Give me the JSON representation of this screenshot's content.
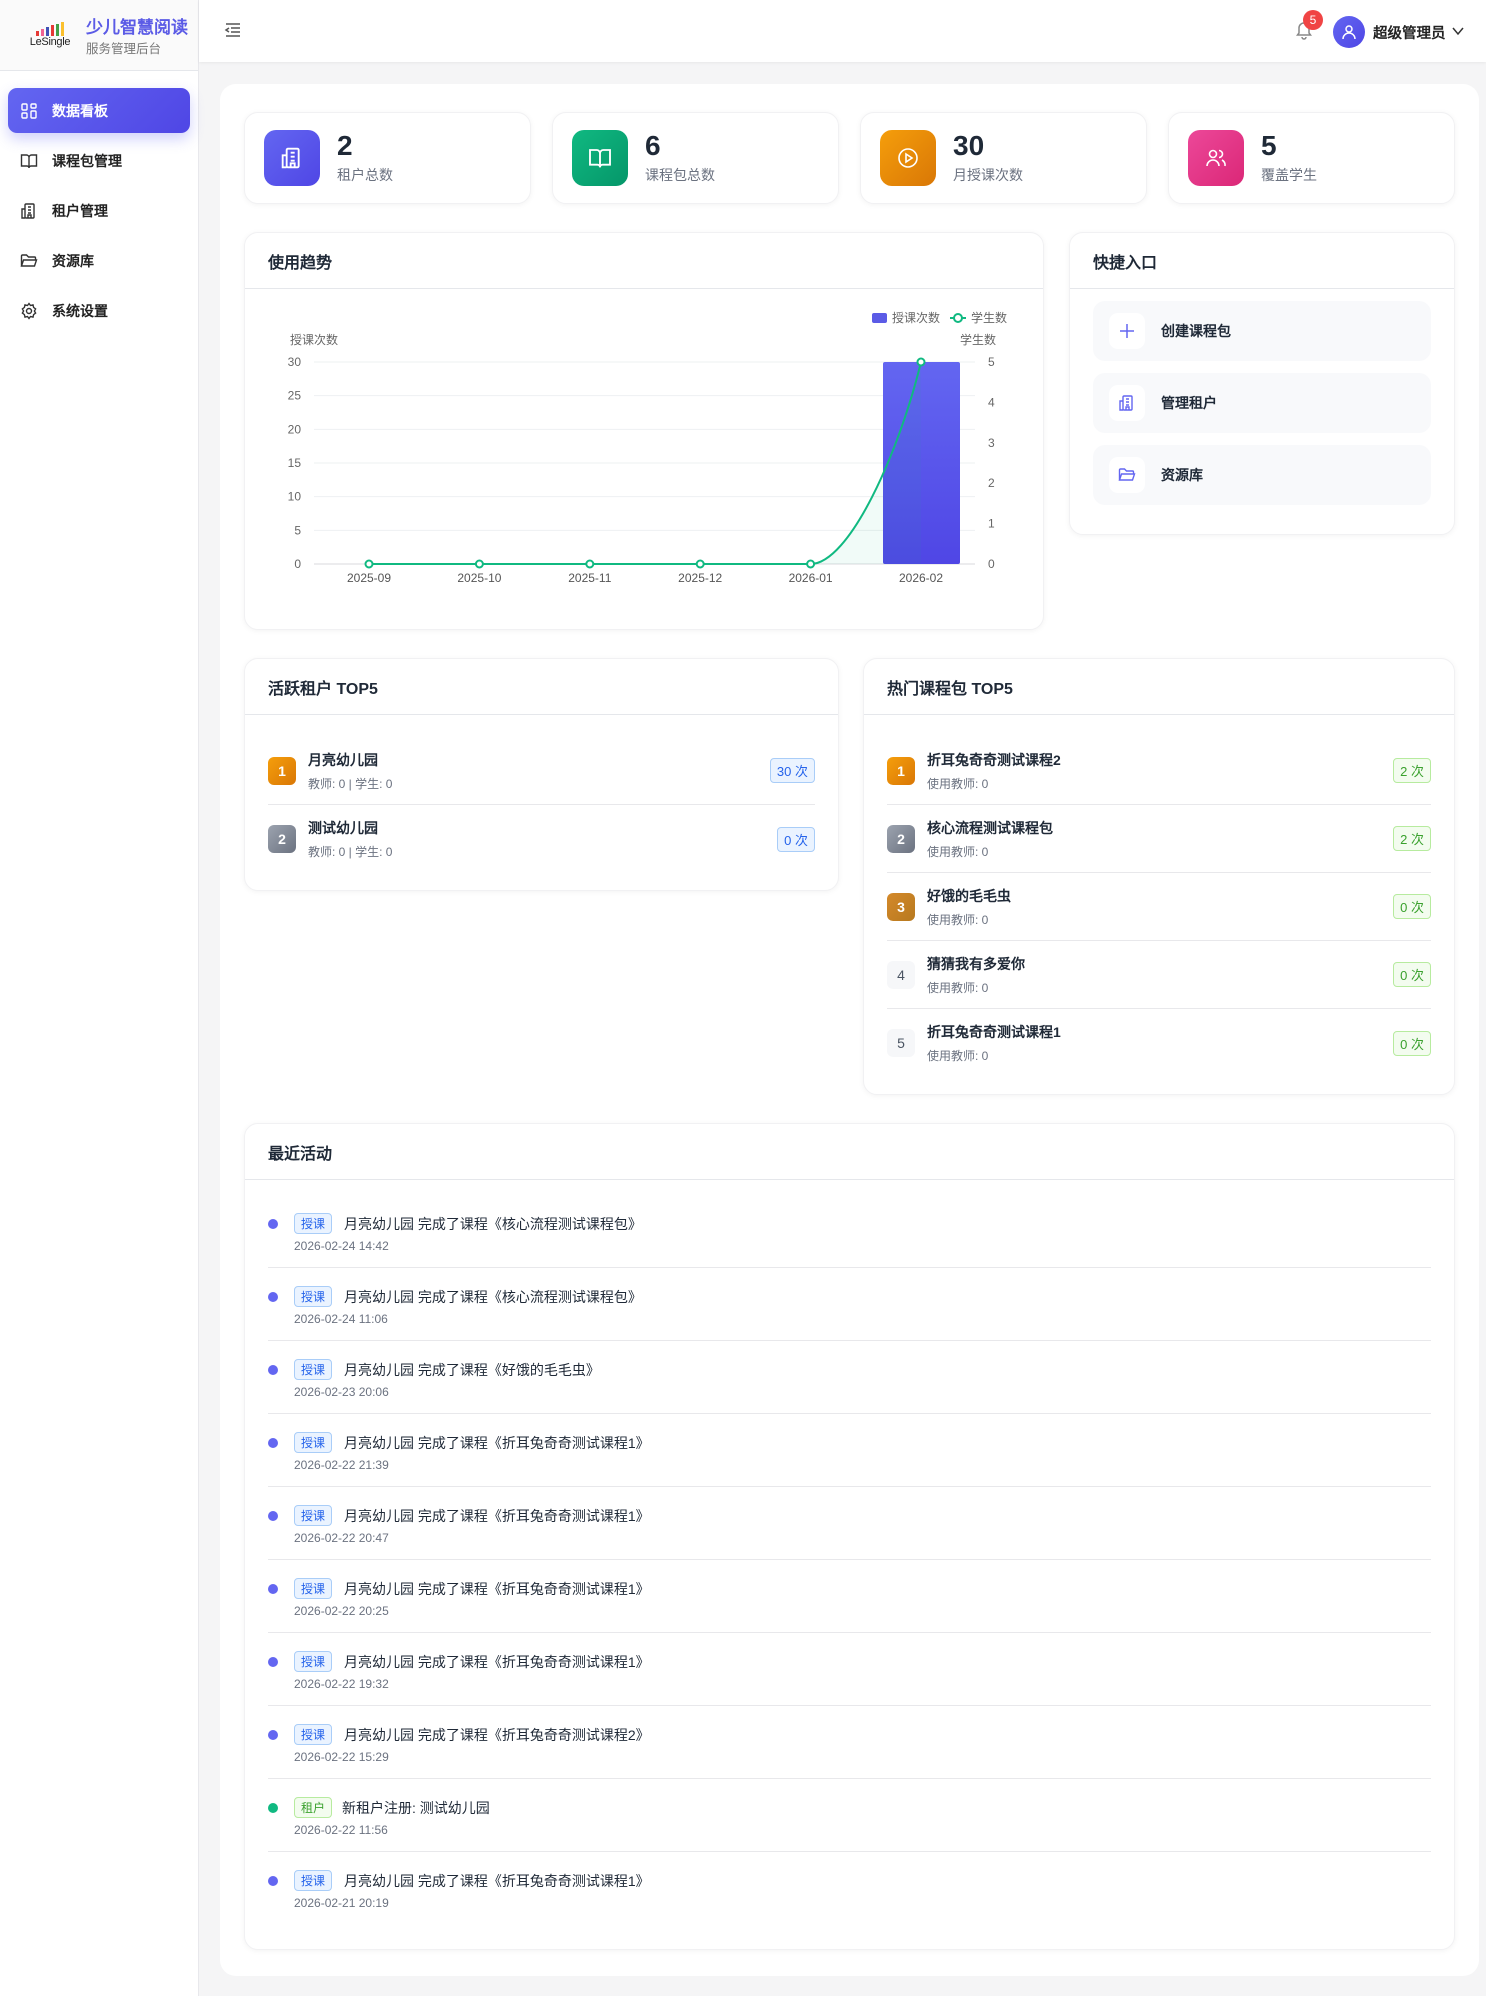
{
  "brand": {
    "logo_word": "LeSingle",
    "title": "少儿智慧阅读",
    "subtitle": "服务管理后台",
    "accent": "#6366f1"
  },
  "sidebar": {
    "items": [
      {
        "label": "数据看板",
        "icon": "dashboard-grid-icon",
        "active": true
      },
      {
        "label": "课程包管理",
        "icon": "book-icon"
      },
      {
        "label": "租户管理",
        "icon": "building-icon"
      },
      {
        "label": "资源库",
        "icon": "folder-icon"
      },
      {
        "label": "系统设置",
        "icon": "gear-icon"
      }
    ]
  },
  "header": {
    "notification_count": "5",
    "user_name": "超级管理员"
  },
  "stats": [
    {
      "value": "2",
      "label": "租户总数",
      "icon": "building-icon",
      "color": "#5b5be6"
    },
    {
      "value": "6",
      "label": "课程包总数",
      "icon": "book-icon",
      "color": "#10b981"
    },
    {
      "value": "30",
      "label": "月授课次数",
      "icon": "play-circle-icon",
      "color": "#f59e0b"
    },
    {
      "value": "5",
      "label": "覆盖学生",
      "icon": "users-icon",
      "color": "#ec4899"
    }
  ],
  "trend": {
    "title": "使用趋势"
  },
  "chart_data": {
    "type": "bar",
    "categories": [
      "2025-09",
      "2025-10",
      "2025-11",
      "2025-12",
      "2026-01",
      "2026-02"
    ],
    "series": [
      {
        "name": "授课次数",
        "type": "bar",
        "axis": "left",
        "values": [
          0,
          0,
          0,
          0,
          0,
          30
        ],
        "color": "#5b5be6"
      },
      {
        "name": "学生数",
        "type": "line",
        "axis": "right",
        "smooth": true,
        "values": [
          0,
          0,
          0,
          0,
          0,
          5
        ],
        "color": "#10b981"
      }
    ],
    "ylabel_left": "授课次数",
    "ylabel_right": "学生数",
    "ylim_left": [
      0,
      30
    ],
    "yticks_left": [
      "0",
      "5",
      "10",
      "15",
      "20",
      "25",
      "30"
    ],
    "ylim_right": [
      0,
      5
    ],
    "yticks_right": [
      "0",
      "1",
      "2",
      "3",
      "4",
      "5"
    ],
    "grid": true,
    "legend": "top-right"
  },
  "quick": {
    "title": "快捷入口",
    "items": [
      {
        "label": "创建课程包",
        "icon": "plus-icon"
      },
      {
        "label": "管理租户",
        "icon": "building-icon"
      },
      {
        "label": "资源库",
        "icon": "folder-icon"
      }
    ]
  },
  "tenants": {
    "title": "活跃租户 TOP5",
    "items": [
      {
        "rank": "1",
        "name": "月亮幼儿园",
        "sub": "教师: 0 | 学生: 0",
        "count": "30 次"
      },
      {
        "rank": "2",
        "name": "测试幼儿园",
        "sub": "教师: 0 | 学生: 0",
        "count": "0 次"
      }
    ]
  },
  "courses": {
    "title": "热门课程包 TOP5",
    "items": [
      {
        "rank": "1",
        "name": "折耳兔奇奇测试课程2",
        "sub": "使用教师: 0",
        "count": "2 次"
      },
      {
        "rank": "2",
        "name": "核心流程测试课程包",
        "sub": "使用教师: 0",
        "count": "2 次"
      },
      {
        "rank": "3",
        "name": "好饿的毛毛虫",
        "sub": "使用教师: 0",
        "count": "0 次"
      },
      {
        "rank": "4",
        "name": "猜猜我有多爱你",
        "sub": "使用教师: 0",
        "count": "0 次"
      },
      {
        "rank": "5",
        "name": "折耳兔奇奇测试课程1",
        "sub": "使用教师: 0",
        "count": "0 次"
      }
    ]
  },
  "activity": {
    "title": "最近活动",
    "items": [
      {
        "tag": "授课",
        "kind": "lesson",
        "text": "月亮幼儿园 完成了课程《核心流程测试课程包》",
        "time": "2026-02-24 14:42"
      },
      {
        "tag": "授课",
        "kind": "lesson",
        "text": "月亮幼儿园 完成了课程《核心流程测试课程包》",
        "time": "2026-02-24 11:06"
      },
      {
        "tag": "授课",
        "kind": "lesson",
        "text": "月亮幼儿园 完成了课程《好饿的毛毛虫》",
        "time": "2026-02-23 20:06"
      },
      {
        "tag": "授课",
        "kind": "lesson",
        "text": "月亮幼儿园 完成了课程《折耳兔奇奇测试课程1》",
        "time": "2026-02-22 21:39"
      },
      {
        "tag": "授课",
        "kind": "lesson",
        "text": "月亮幼儿园 完成了课程《折耳兔奇奇测试课程1》",
        "time": "2026-02-22 20:47"
      },
      {
        "tag": "授课",
        "kind": "lesson",
        "text": "月亮幼儿园 完成了课程《折耳兔奇奇测试课程1》",
        "time": "2026-02-22 20:25"
      },
      {
        "tag": "授课",
        "kind": "lesson",
        "text": "月亮幼儿园 完成了课程《折耳兔奇奇测试课程1》",
        "time": "2026-02-22 19:32"
      },
      {
        "tag": "授课",
        "kind": "lesson",
        "text": "月亮幼儿园 完成了课程《折耳兔奇奇测试课程2》",
        "time": "2026-02-22 15:29"
      },
      {
        "tag": "租户",
        "kind": "tenant",
        "text": "新租户注册: 测试幼儿园",
        "time": "2026-02-22 11:56"
      },
      {
        "tag": "授课",
        "kind": "lesson",
        "text": "月亮幼儿园 完成了课程《折耳兔奇奇测试课程1》",
        "time": "2026-02-21 20:19"
      }
    ]
  }
}
